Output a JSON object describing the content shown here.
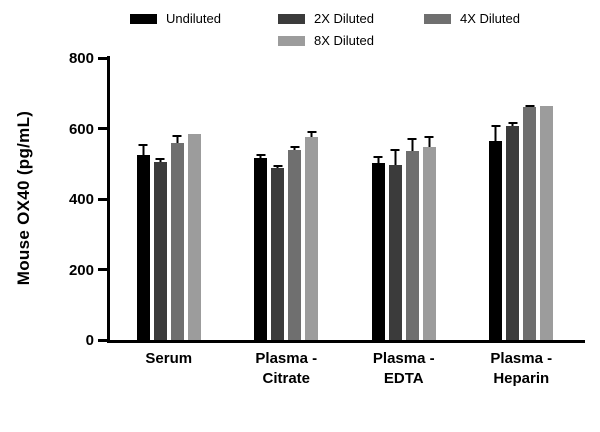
{
  "chart_data": {
    "type": "bar",
    "title": "",
    "xlabel": "",
    "ylabel": "Mouse OX40 (pg/mL)",
    "ylim": [
      0,
      800
    ],
    "yticks": [
      0,
      200,
      400,
      600,
      800
    ],
    "grid": false,
    "legend_position": "top",
    "categories": [
      "Serum",
      "Plasma -\nCitrate",
      "Plasma -\nEDTA",
      "Plasma -\nHeparin"
    ],
    "series": [
      {
        "name": "Undiluted",
        "color": "#000000",
        "values": [
          525,
          515,
          503,
          565
        ],
        "errors": [
          30,
          12,
          18,
          45
        ]
      },
      {
        "name": "2X Diluted",
        "color": "#3b3b3b",
        "values": [
          505,
          487,
          497,
          607
        ],
        "errors": [
          12,
          10,
          45,
          12
        ]
      },
      {
        "name": "4X Diluted",
        "color": "#6f6f6f",
        "values": [
          560,
          538,
          537,
          660
        ],
        "errors": [
          22,
          12,
          35,
          8
        ]
      },
      {
        "name": "8X Diluted",
        "color": "#9c9c9c",
        "values": [
          585,
          575,
          548,
          663
        ],
        "errors": [
          0,
          18,
          30,
          0
        ]
      }
    ],
    "axis_color": "#000000",
    "error_bar_color": "#000000"
  }
}
